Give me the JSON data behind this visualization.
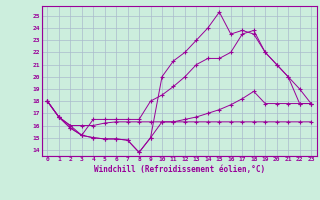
{
  "xlabel": "Windchill (Refroidissement éolien,°C)",
  "bg_color": "#cceedd",
  "line_color": "#990099",
  "grid_color": "#aabbcc",
  "xlim": [
    -0.5,
    23.5
  ],
  "ylim": [
    13.5,
    25.8
  ],
  "yticks": [
    14,
    15,
    16,
    17,
    18,
    19,
    20,
    21,
    22,
    23,
    24,
    25
  ],
  "xticks": [
    0,
    1,
    2,
    3,
    4,
    5,
    6,
    7,
    8,
    9,
    10,
    11,
    12,
    13,
    14,
    15,
    16,
    17,
    18,
    19,
    20,
    21,
    22,
    23
  ],
  "series": [
    [
      18.0,
      16.7,
      16.0,
      16.0,
      16.0,
      16.2,
      16.3,
      16.3,
      16.3,
      16.3,
      16.3,
      16.3,
      16.3,
      16.3,
      16.3,
      16.3,
      16.3,
      16.3,
      16.3,
      16.3,
      16.3,
      16.3,
      16.3,
      16.3
    ],
    [
      18.0,
      16.7,
      15.8,
      15.2,
      15.0,
      14.9,
      14.9,
      14.8,
      13.8,
      15.0,
      20.0,
      21.3,
      22.0,
      23.0,
      24.0,
      25.3,
      23.5,
      23.8,
      23.5,
      22.0,
      21.0,
      20.0,
      19.0,
      17.8
    ],
    [
      18.0,
      16.7,
      15.8,
      15.2,
      16.5,
      16.5,
      16.5,
      16.5,
      16.5,
      18.0,
      18.5,
      19.2,
      20.0,
      21.0,
      21.5,
      21.5,
      22.0,
      23.5,
      23.8,
      22.0,
      21.0,
      20.0,
      17.8,
      17.8
    ],
    [
      18.0,
      16.7,
      16.0,
      15.2,
      15.0,
      14.9,
      14.9,
      14.8,
      13.8,
      15.0,
      16.3,
      16.3,
      16.5,
      16.7,
      17.0,
      17.3,
      17.7,
      18.2,
      18.8,
      17.8,
      17.8,
      17.8,
      17.8,
      17.8
    ]
  ]
}
